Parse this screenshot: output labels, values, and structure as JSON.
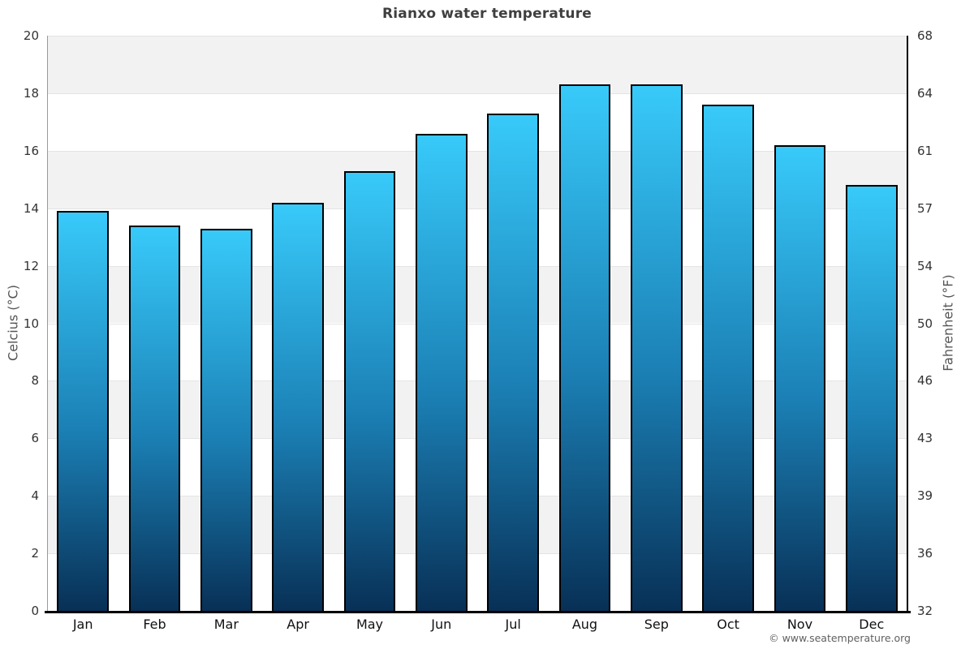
{
  "title": "Rianxo water temperature",
  "footer": "© www.seatemperature.org",
  "chart_data": {
    "type": "bar",
    "title": "Rianxo water temperature",
    "categories": [
      "Jan",
      "Feb",
      "Mar",
      "Apr",
      "May",
      "Jun",
      "Jul",
      "Aug",
      "Sep",
      "Oct",
      "Nov",
      "Dec"
    ],
    "values": [
      13.9,
      13.4,
      13.3,
      14.2,
      15.3,
      16.6,
      17.3,
      18.3,
      18.3,
      17.6,
      16.2,
      14.8
    ],
    "xlabel": "",
    "ylabel_left": "Celcius (°C)",
    "ylabel_right": "Fahrenheit (°F)",
    "ylim_left": [
      0,
      20
    ],
    "yticks_left": [
      0,
      2,
      4,
      6,
      8,
      10,
      12,
      14,
      16,
      18,
      20
    ],
    "yticks_right": [
      32,
      36,
      39,
      43,
      46,
      50,
      54,
      57,
      61,
      64,
      68
    ],
    "grid": true,
    "legend": "none",
    "band_fill": "alternating horizontal bands, gray on even 2-degree intervals from top",
    "colors": {
      "bar_gradient_top": "#38cafa",
      "bar_gradient_bottom": "#083056",
      "bar_border": "#000000",
      "band": "#f2f2f2",
      "gridline": "#e4e4e4",
      "axis_left": "#999999",
      "axis_right": "#000000",
      "axis_bottom": "#000000",
      "title_text": "#3f3f3f",
      "tick_text": "#333333",
      "axis_title_text": "#555555",
      "footer_text": "#616161"
    }
  }
}
